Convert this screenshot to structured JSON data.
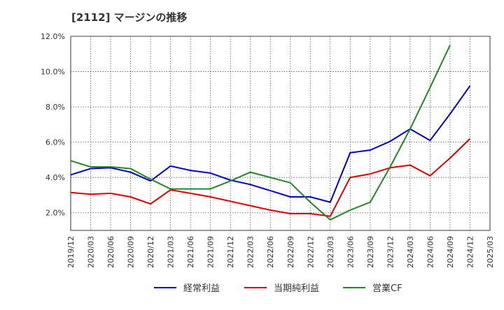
{
  "chart_data": {
    "type": "line",
    "title": "[2112]  マージンの推移",
    "xlabel": "",
    "ylabel": "",
    "categories": [
      "2019/12",
      "2020/03",
      "2020/06",
      "2020/09",
      "2020/12",
      "2021/03",
      "2021/06",
      "2021/09",
      "2021/12",
      "2022/03",
      "2022/06",
      "2022/09",
      "2022/12",
      "2023/03",
      "2023/06",
      "2023/09",
      "2023/12",
      "2024/03",
      "2024/06",
      "2024/09",
      "2024/12",
      "2025/03"
    ],
    "y_ticks": [
      "2.0%",
      "4.0%",
      "6.0%",
      "8.0%",
      "10.0%",
      "12.0%"
    ],
    "ylim": [
      1.0,
      12.0
    ],
    "grid": true,
    "legend_position": "bottom",
    "series": [
      {
        "name": "経常利益",
        "color": "#0000cc",
        "values": [
          4.15,
          4.5,
          4.55,
          4.3,
          3.8,
          4.65,
          4.4,
          4.25,
          3.85,
          3.6,
          3.25,
          2.9,
          2.9,
          2.6,
          5.4,
          5.55,
          6.05,
          6.75,
          6.1,
          7.6,
          9.2,
          null
        ]
      },
      {
        "name": "当期純利益",
        "color": "#dd0000",
        "values": [
          3.15,
          3.05,
          3.1,
          2.9,
          2.5,
          3.3,
          3.1,
          2.9,
          2.65,
          2.4,
          2.15,
          1.95,
          1.95,
          1.8,
          4.0,
          4.2,
          4.55,
          4.7,
          4.1,
          5.1,
          6.2,
          null
        ]
      },
      {
        "name": "営業CF",
        "color": "#228822",
        "values": [
          4.95,
          4.6,
          4.6,
          4.5,
          3.9,
          3.35,
          3.35,
          3.35,
          3.8,
          4.3,
          4.0,
          3.7,
          2.6,
          1.6,
          2.15,
          2.6,
          4.6,
          6.75,
          9.1,
          11.5,
          null,
          null
        ]
      }
    ]
  }
}
